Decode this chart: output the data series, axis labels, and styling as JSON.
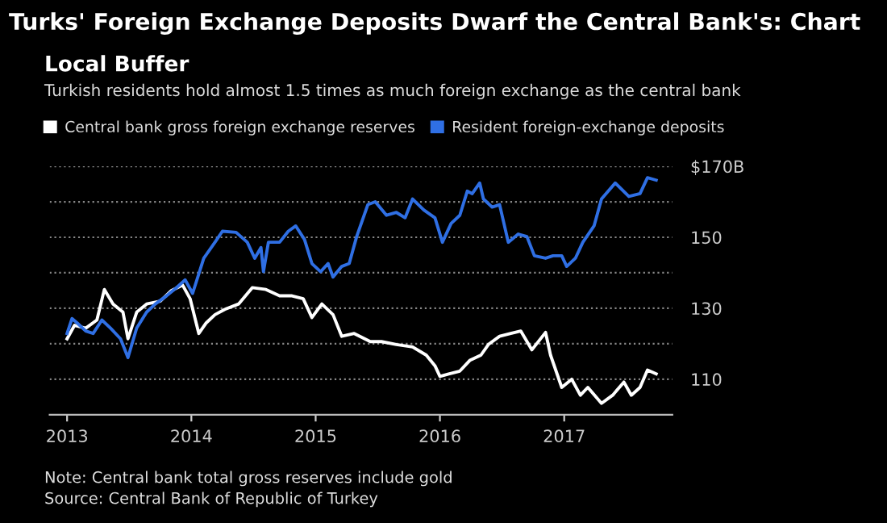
{
  "chart_data": {
    "type": "line",
    "title": "Turks' Foreign Exchange Deposits Dwarf the Central Bank's: Chart",
    "subtitle": "Local Buffer",
    "annotations": [
      "Turkish residents hold almost 1.5 times as much foreign exchange as the central bank",
      "Note: Central bank total gross reserves include gold",
      "Source: Central Bank of Republic of Turkey"
    ],
    "series": [
      {
        "name": "Central bank gross foreign exchange reserves",
        "color": "#ffffff",
        "x": [
          2013.0,
          2013.06,
          2013.15,
          2013.24,
          2013.3,
          2013.37,
          2013.45,
          2013.49,
          2013.56,
          2013.64,
          2013.75,
          2013.84,
          2013.93,
          2013.99,
          2014.06,
          2014.12,
          2014.19,
          2014.27,
          2014.38,
          2014.49,
          2014.6,
          2014.71,
          2014.81,
          2014.9,
          2014.97,
          2015.05,
          2015.14,
          2015.21,
          2015.31,
          2015.44,
          2015.53,
          2015.65,
          2015.78,
          2015.89,
          2015.96,
          2016.0,
          2016.07,
          2016.16,
          2016.24,
          2016.33,
          2016.39,
          2016.48,
          2016.57,
          2016.65,
          2016.74,
          2016.85,
          2016.89,
          2016.98,
          2017.06,
          2017.13,
          2017.19,
          2017.3,
          2017.39,
          2017.48,
          2017.54,
          2017.61,
          2017.67,
          2017.74
        ],
        "values": [
          121.4,
          125.2,
          124.4,
          126.7,
          135.3,
          131.2,
          128.9,
          121.4,
          128.9,
          131.2,
          132.0,
          135.0,
          136.5,
          132.7,
          122.9,
          125.9,
          128.2,
          129.7,
          131.2,
          135.8,
          135.3,
          133.5,
          133.5,
          132.7,
          127.4,
          131.2,
          128.2,
          122.1,
          122.9,
          120.6,
          120.6,
          119.8,
          119.1,
          116.8,
          113.8,
          110.8,
          111.5,
          112.3,
          115.3,
          116.8,
          119.8,
          122.1,
          122.9,
          123.6,
          118.3,
          123.2,
          116.8,
          107.7,
          110.0,
          105.5,
          107.7,
          103.2,
          105.5,
          109.2,
          105.5,
          107.7,
          112.6,
          111.5
        ]
      },
      {
        "name": "Resident foreign-exchange deposits",
        "color": "#2f6fe4",
        "x": [
          2013.0,
          2013.04,
          2013.08,
          2013.15,
          2013.21,
          2013.28,
          2013.35,
          2013.43,
          2013.49,
          2013.56,
          2013.64,
          2013.71,
          2013.8,
          2013.88,
          2013.95,
          2014.01,
          2014.1,
          2014.19,
          2014.25,
          2014.36,
          2014.45,
          2014.51,
          2014.56,
          2014.58,
          2014.62,
          2014.71,
          2014.78,
          2014.84,
          2014.91,
          2014.97,
          2015.04,
          2015.1,
          2015.14,
          2015.21,
          2015.27,
          2015.33,
          2015.42,
          2015.48,
          2015.57,
          2015.65,
          2015.72,
          2015.78,
          2015.87,
          2015.96,
          2016.02,
          2016.09,
          2016.16,
          2016.22,
          2016.26,
          2016.32,
          2016.35,
          2016.42,
          2016.48,
          2016.55,
          2016.63,
          2016.7,
          2016.76,
          2016.85,
          2016.91,
          2016.98,
          2017.02,
          2017.09,
          2017.15,
          2017.24,
          2017.3,
          2017.41,
          2017.52,
          2017.61,
          2017.67,
          2017.74
        ],
        "values": [
          122.9,
          127.1,
          125.9,
          123.6,
          122.9,
          126.7,
          124.4,
          121.4,
          116.1,
          124.4,
          128.9,
          131.2,
          133.5,
          135.8,
          138.0,
          134.2,
          144.1,
          148.6,
          151.7,
          151.4,
          148.6,
          144.1,
          147.1,
          140.3,
          148.6,
          148.6,
          151.7,
          153.2,
          149.4,
          142.6,
          140.3,
          142.6,
          138.8,
          141.8,
          142.6,
          150.2,
          159.2,
          160.0,
          156.2,
          157.0,
          155.5,
          160.8,
          157.7,
          155.5,
          148.6,
          153.9,
          156.2,
          163.0,
          162.3,
          165.3,
          160.8,
          158.5,
          159.2,
          148.6,
          150.9,
          150.2,
          144.8,
          144.1,
          144.8,
          144.8,
          141.8,
          144.1,
          148.6,
          153.2,
          160.8,
          165.3,
          161.5,
          162.3,
          166.8,
          166.1
        ]
      }
    ],
    "xlim": [
      2012.86,
      2017.87
    ],
    "xticks": [
      2013,
      2014,
      2015,
      2016,
      2017
    ],
    "ylim": [
      100,
      170
    ],
    "yticks": [
      {
        "value": 110,
        "label": "110"
      },
      {
        "value": 120,
        "label": null
      },
      {
        "value": 130,
        "label": "130"
      },
      {
        "value": 140,
        "label": null
      },
      {
        "value": 150,
        "label": "150"
      },
      {
        "value": 160,
        "label": null
      },
      {
        "value": 170,
        "label": "$170B"
      }
    ],
    "grid": "y",
    "legend": "top left",
    "marker": "none",
    "line_style": "solid"
  }
}
